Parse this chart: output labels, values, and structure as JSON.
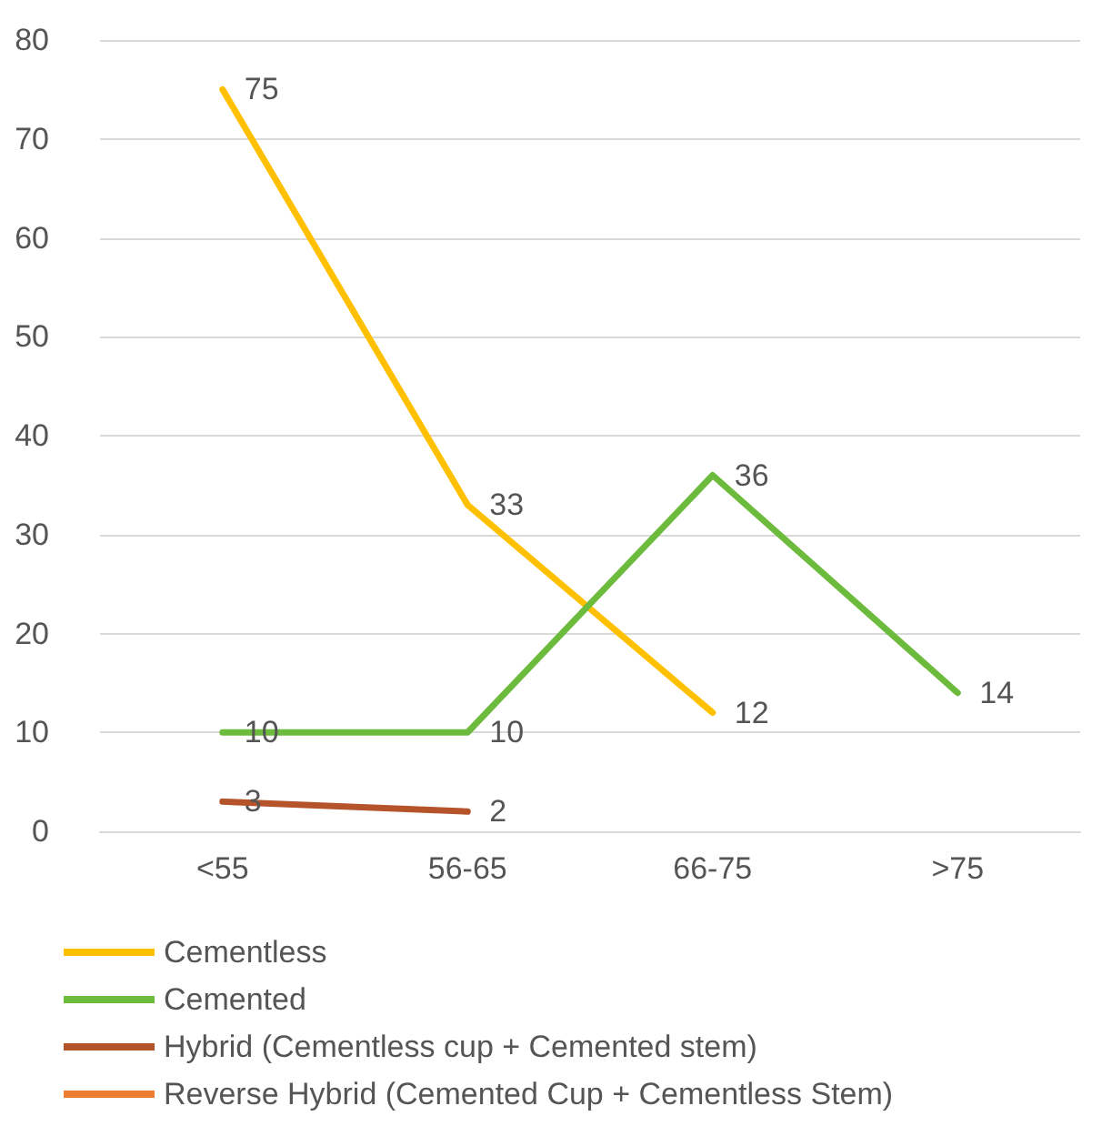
{
  "chart_data": {
    "type": "line",
    "categories": [
      "<55",
      "56-65",
      "66-75",
      ">75"
    ],
    "series": [
      {
        "name": "Cementless",
        "color": "#ffc000",
        "values": [
          75,
          33,
          12,
          null
        ]
      },
      {
        "name": "Cemented",
        "color": "#6cbb3c",
        "values": [
          10,
          10,
          36,
          14
        ]
      },
      {
        "name": "Hybrid (Cementless cup + Cemented stem)",
        "color": "#b5532a",
        "values": [
          3,
          2,
          null,
          null
        ]
      },
      {
        "name": "Reverse Hybrid (Cemented Cup + Cementless Stem)",
        "color": "#ed7d31",
        "values": [
          null,
          null,
          null,
          null
        ]
      }
    ],
    "ylim": [
      0,
      80
    ],
    "yticks": [
      0,
      10,
      20,
      30,
      40,
      50,
      60,
      70,
      80
    ],
    "grid": "y",
    "legend": "bottom",
    "data_labels": true,
    "marker": "none",
    "line_style": "solid"
  }
}
